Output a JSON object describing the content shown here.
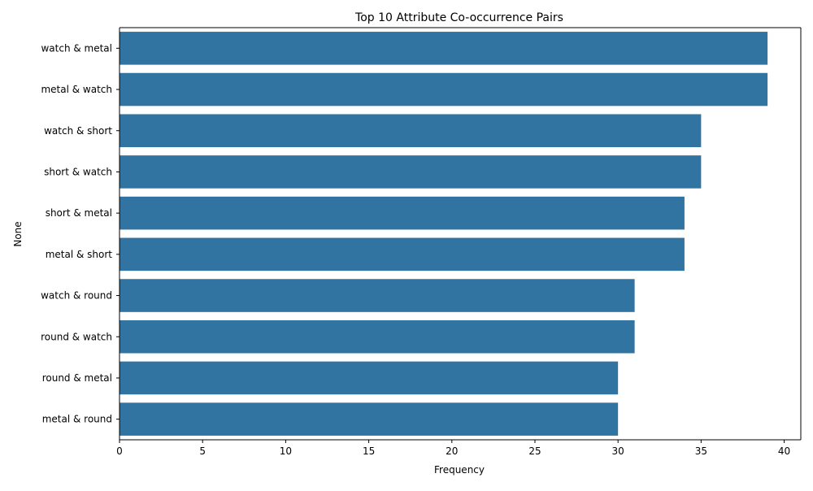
{
  "chart_data": {
    "type": "bar",
    "orientation": "horizontal",
    "title": "Top 10 Attribute Co-occurrence Pairs",
    "xlabel": "Frequency",
    "ylabel": "None",
    "categories": [
      "watch & metal",
      "metal & watch",
      "watch & short",
      "short & watch",
      "short & metal",
      "metal & short",
      "watch & round",
      "round & watch",
      "round & metal",
      "metal & round"
    ],
    "values": [
      39,
      39,
      35,
      35,
      34,
      34,
      31,
      31,
      30,
      30
    ],
    "xlim": [
      0,
      41
    ],
    "xticks": [
      0,
      5,
      10,
      15,
      20,
      25,
      30,
      35,
      40
    ],
    "grid": false,
    "bar_color": "#3274a1"
  }
}
